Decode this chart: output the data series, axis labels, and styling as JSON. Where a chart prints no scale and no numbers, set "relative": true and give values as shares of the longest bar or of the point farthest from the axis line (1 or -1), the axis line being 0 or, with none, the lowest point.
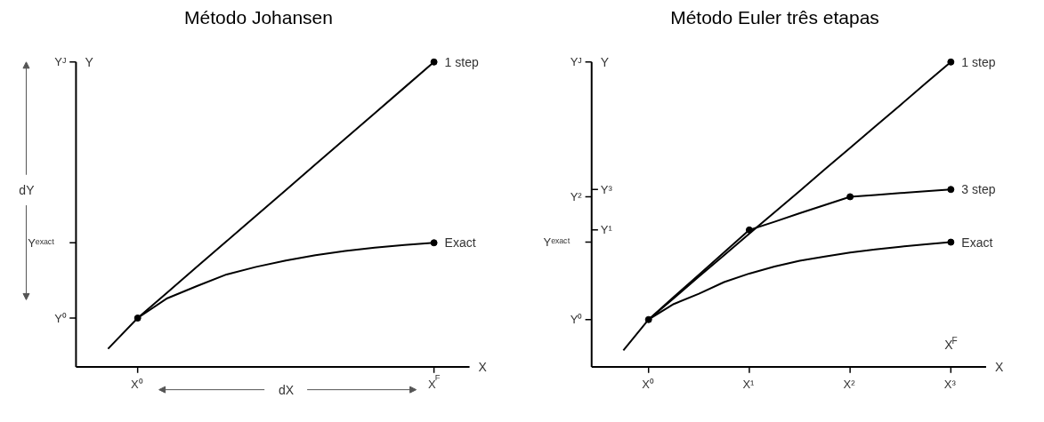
{
  "chart_data": [
    {
      "type": "line",
      "title": "Método Johansen",
      "xlabel": "X",
      "ylabel": "Y",
      "relative": true,
      "marker": "none",
      "categories": [
        null,
        "X⁰",
        null,
        null,
        null,
        null,
        null,
        null,
        null,
        null,
        null,
        "X$^{F}$"
      ],
      "series": [
        {
          "name": "1 step",
          "color": "#000000",
          "values": [
            null,
            0.16,
            0.244,
            0.328,
            0.412,
            0.496,
            0.58,
            0.664,
            0.748,
            0.832,
            0.916,
            1.0
          ]
        },
        {
          "name": "Exact",
          "color": "#000000",
          "values": [
            0.059,
            0.16,
            0.225,
            0.265,
            0.303,
            0.328,
            0.349,
            0.366,
            0.38,
            0.391,
            0.4,
            0.407
          ]
        },
        {
          "type": "scatter",
          "color": "#000000",
          "x": [
            "X⁰",
            "X$^{F}$",
            "X$^{F}$"
          ],
          "values": [
            0.16,
            1.0,
            0.407
          ]
        }
      ],
      "annotations": [
        "dY",
        "dX",
        "Y⁰",
        "Yᵉˣᵃᶜᵗ",
        "Yᴶ"
      ]
    },
    {
      "type": "line",
      "title": "Método Euler três etapas",
      "xlabel": "X",
      "ylabel": "Y",
      "relative": true,
      "marker": "none",
      "categories": [
        null,
        "X⁰",
        null,
        null,
        null,
        "X¹",
        null,
        null,
        null,
        "X²",
        null,
        null,
        null,
        "X³"
      ],
      "series": [
        {
          "name": "1 step",
          "color": "#000000",
          "values": [
            null,
            0.155,
            0.225,
            0.296,
            0.366,
            0.437,
            0.507,
            0.577,
            0.648,
            0.718,
            0.789,
            0.859,
            0.93,
            1.0
          ]
        },
        {
          "name": "3 step",
          "color": "#000000",
          "values": [
            null,
            0.155,
            0.229,
            0.302,
            0.376,
            0.449,
            0.476,
            0.504,
            0.531,
            0.558,
            0.564,
            0.57,
            0.576,
            0.582
          ]
        },
        {
          "name": "Exact",
          "color": "#000000",
          "values": [
            0.054,
            0.155,
            0.206,
            0.24,
            0.278,
            0.306,
            0.329,
            0.348,
            0.362,
            0.375,
            0.385,
            0.394,
            0.402,
            0.409
          ]
        },
        {
          "type": "scatter",
          "color": "#000000",
          "x": [
            "X⁰",
            "X¹",
            "X²",
            "X³",
            "X³",
            "X³"
          ],
          "values": [
            0.155,
            0.449,
            0.558,
            1.0,
            0.582,
            0.409
          ]
        }
      ],
      "annotations": [
        "X$^{F}$",
        "Y⁰",
        "Yᵉˣᵃᶜᵗ",
        "Y¹",
        "Y²",
        "Y³",
        "Yᴶ"
      ]
    }
  ]
}
